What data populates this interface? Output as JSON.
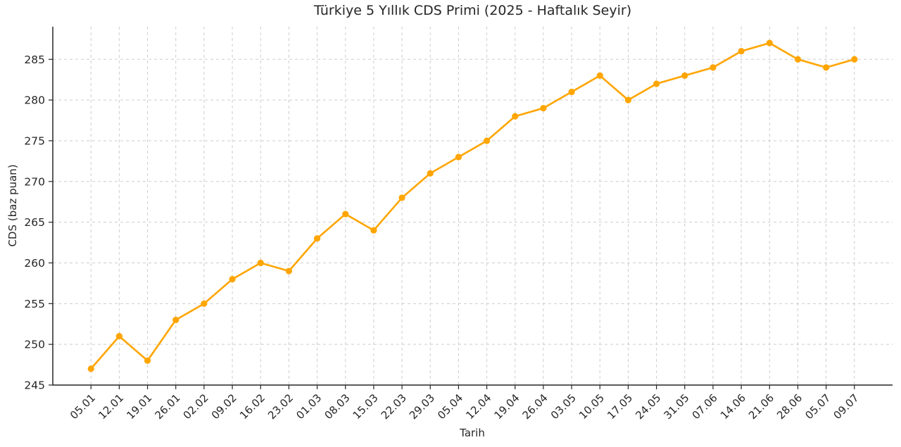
{
  "chart_data": {
    "type": "line",
    "title": "Türkiye 5 Yıllık CDS Primi (2025 - Haftalık Seyir)",
    "xlabel": "Tarih",
    "ylabel": "CDS (baz puan)",
    "categories": [
      "05.01",
      "12.01",
      "19.01",
      "26.01",
      "02.02",
      "09.02",
      "16.02",
      "23.02",
      "01.03",
      "08.03",
      "15.03",
      "22.03",
      "29.03",
      "05.04",
      "12.04",
      "19.04",
      "26.04",
      "03.05",
      "10.05",
      "17.05",
      "24.05",
      "31.05",
      "07.06",
      "14.06",
      "21.06",
      "28.06",
      "05.07",
      "09.07"
    ],
    "series": [
      {
        "name": "CDS",
        "values": [
          247,
          251,
          248,
          253,
          255,
          258,
          260,
          259,
          263,
          266,
          264,
          268,
          271,
          273,
          275,
          278,
          279,
          281,
          283,
          280,
          282,
          283,
          284,
          286,
          287,
          285,
          284,
          285
        ]
      }
    ],
    "ylim": [
      245,
      289
    ],
    "yticks": [
      245,
      250,
      255,
      260,
      265,
      270,
      275,
      280,
      285
    ],
    "grid": true,
    "grid_style": "dashed",
    "legend": "none",
    "marker": "circle",
    "colors": {
      "line": "#FFA500",
      "marker": "#FFA500",
      "grid": "#CDCDCD",
      "axis": "#262626",
      "text": "#262626",
      "background": "#FFFFFF"
    }
  }
}
